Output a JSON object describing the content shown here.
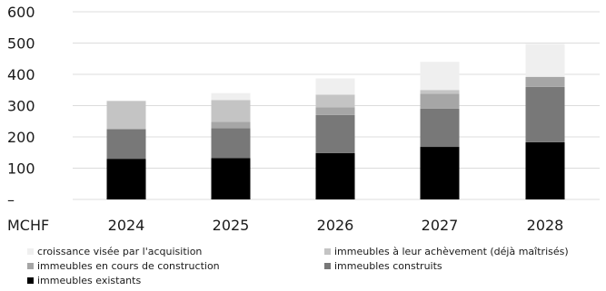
{
  "chart_data": {
    "type": "bar",
    "stacked": true,
    "unit_label": "MCHF",
    "categories": [
      "2024",
      "2025",
      "2026",
      "2027",
      "2028"
    ],
    "ylim": [
      0,
      600
    ],
    "yticks": [
      {
        "value": 0,
        "label": "–"
      },
      {
        "value": 100,
        "label": "100"
      },
      {
        "value": 200,
        "label": "200"
      },
      {
        "value": 300,
        "label": "300"
      },
      {
        "value": 400,
        "label": "400"
      },
      {
        "value": 500,
        "label": "500"
      },
      {
        "value": 600,
        "label": "600"
      }
    ],
    "grid": true,
    "legend_position": "bottom",
    "series": [
      {
        "name": "immeubles existants",
        "color": "#000000",
        "values": [
          130,
          132,
          148,
          168,
          183
        ]
      },
      {
        "name": "immeubles construits",
        "color": "#787878",
        "values": [
          95,
          96,
          122,
          122,
          177
        ]
      },
      {
        "name": "immeubles en cours de construction",
        "color": "#a6a6a6",
        "values": [
          0,
          20,
          25,
          48,
          32
        ]
      },
      {
        "name": "immeubles à leur achèvement (déjà maîtrisés)",
        "color": "#c4c4c4",
        "values": [
          90,
          70,
          40,
          12,
          0
        ]
      },
      {
        "name": "croissance visée par l'acquisition",
        "color": "#efefef",
        "values": [
          0,
          22,
          52,
          90,
          105
        ]
      }
    ],
    "legend_order": [
      "croissance visée par l'acquisition",
      "immeubles à leur achèvement (déjà maîtrisés)",
      "immeubles en cours de construction",
      "immeubles construits",
      "immeubles existants"
    ]
  }
}
